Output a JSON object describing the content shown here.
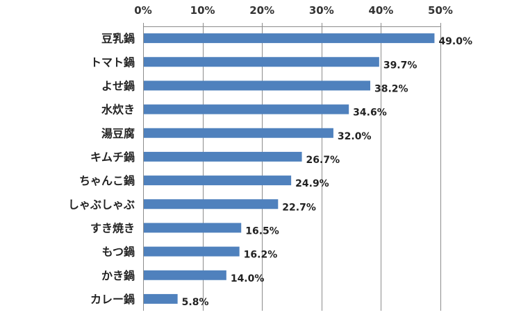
{
  "chart_data": {
    "type": "bar",
    "orientation": "horizontal",
    "title": "",
    "xlabel": "",
    "ylabel": "",
    "categories": [
      "豆乳鍋",
      "トマト鍋",
      "よせ鍋",
      "水炊き",
      "湯豆腐",
      "キムチ鍋",
      "ちゃんこ鍋",
      "しゃぶしゃぶ",
      "すき焼き",
      "もつ鍋",
      "かき鍋",
      "カレー鍋"
    ],
    "values": [
      49.0,
      39.7,
      38.2,
      34.6,
      32.0,
      26.7,
      24.9,
      22.7,
      16.5,
      16.2,
      14.0,
      5.8
    ],
    "value_labels": [
      "49.0%",
      "39.7%",
      "38.2%",
      "34.6%",
      "32.0%",
      "26.7%",
      "24.9%",
      "22.7%",
      "16.5%",
      "16.2%",
      "14.0%",
      "5.8%"
    ],
    "xlim": [
      0,
      50
    ],
    "x_ticks": [
      0,
      10,
      20,
      30,
      40,
      50
    ],
    "x_tick_labels": [
      "0%",
      "10%",
      "20%",
      "30%",
      "40%",
      "50%"
    ],
    "x_axis_position": "top",
    "grid": true,
    "legend": "none",
    "bar_color": "#4F81BD"
  }
}
